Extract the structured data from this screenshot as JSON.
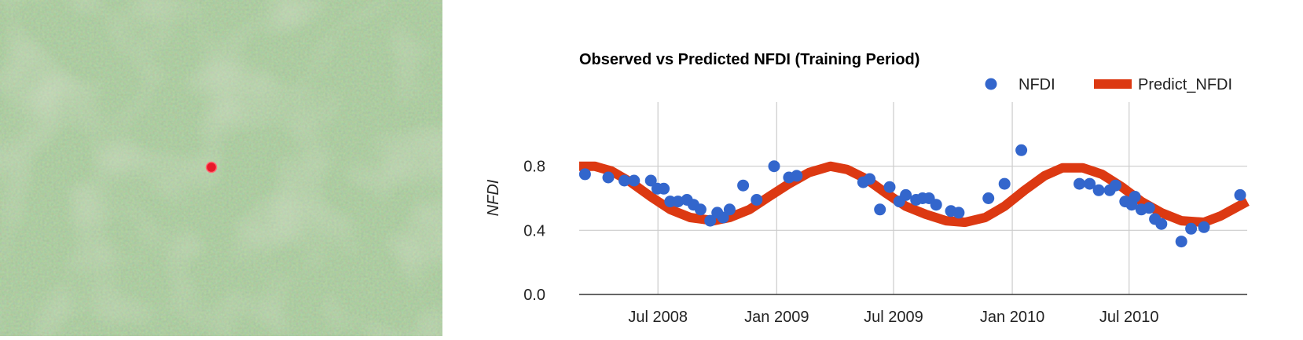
{
  "image_panel": {
    "marker_color": "#e8182a",
    "base_color": "#7aa66a"
  },
  "chart_data": {
    "type": "line",
    "title": "Observed vs Predicted NFDI (Training Period)",
    "xlabel": "",
    "ylabel": "NFDI",
    "x_ticks": [
      "Jul 2008",
      "Jan 2009",
      "Jul 2009",
      "Jan 2010",
      "Jul 2010"
    ],
    "y_ticks": [
      "0.0",
      "0.4",
      "0.8"
    ],
    "ylim": [
      0,
      1.2
    ],
    "xlim": [
      "2008-03-01",
      "2010-12-31"
    ],
    "grid": true,
    "legend": "top-right",
    "series": [
      {
        "name": "NFDI",
        "style": "scatter",
        "color": "#3366cc",
        "points": [
          [
            "2008-03-10",
            0.75
          ],
          [
            "2008-04-15",
            0.73
          ],
          [
            "2008-05-10",
            0.71
          ],
          [
            "2008-05-25",
            0.71
          ],
          [
            "2008-06-20",
            0.71
          ],
          [
            "2008-06-30",
            0.66
          ],
          [
            "2008-07-10",
            0.66
          ],
          [
            "2008-07-20",
            0.58
          ],
          [
            "2008-08-01",
            0.58
          ],
          [
            "2008-08-15",
            0.59
          ],
          [
            "2008-08-25",
            0.56
          ],
          [
            "2008-09-05",
            0.53
          ],
          [
            "2008-09-20",
            0.46
          ],
          [
            "2008-10-01",
            0.51
          ],
          [
            "2008-10-10",
            0.48
          ],
          [
            "2008-10-20",
            0.53
          ],
          [
            "2008-11-10",
            0.68
          ],
          [
            "2008-12-01",
            0.59
          ],
          [
            "2008-12-28",
            0.8
          ],
          [
            "2009-01-20",
            0.73
          ],
          [
            "2009-02-01",
            0.74
          ],
          [
            "2009-05-15",
            0.7
          ],
          [
            "2009-05-25",
            0.72
          ],
          [
            "2009-06-10",
            0.53
          ],
          [
            "2009-06-25",
            0.67
          ],
          [
            "2009-07-10",
            0.58
          ],
          [
            "2009-07-20",
            0.62
          ],
          [
            "2009-08-05",
            0.59
          ],
          [
            "2009-08-15",
            0.6
          ],
          [
            "2009-08-25",
            0.6
          ],
          [
            "2009-09-05",
            0.56
          ],
          [
            "2009-09-28",
            0.52
          ],
          [
            "2009-10-10",
            0.51
          ],
          [
            "2009-11-25",
            0.6
          ],
          [
            "2009-12-20",
            0.69
          ],
          [
            "2010-01-15",
            0.9
          ],
          [
            "2010-04-15",
            0.69
          ],
          [
            "2010-05-01",
            0.69
          ],
          [
            "2010-05-15",
            0.65
          ],
          [
            "2010-06-01",
            0.65
          ],
          [
            "2010-06-10",
            0.68
          ],
          [
            "2010-06-25",
            0.58
          ],
          [
            "2010-07-05",
            0.56
          ],
          [
            "2010-07-10",
            0.61
          ],
          [
            "2010-07-20",
            0.53
          ],
          [
            "2010-08-01",
            0.54
          ],
          [
            "2010-08-10",
            0.47
          ],
          [
            "2010-08-20",
            0.44
          ],
          [
            "2010-09-20",
            0.33
          ],
          [
            "2010-10-05",
            0.41
          ],
          [
            "2010-10-25",
            0.42
          ],
          [
            "2010-12-20",
            0.62
          ]
        ]
      },
      {
        "name": "Predict_NFDI",
        "style": "line",
        "color": "#dc3912",
        "points": [
          [
            "2008-03-01",
            0.8
          ],
          [
            "2008-03-25",
            0.8
          ],
          [
            "2008-04-20",
            0.77
          ],
          [
            "2008-05-20",
            0.7
          ],
          [
            "2008-06-20",
            0.61
          ],
          [
            "2008-07-20",
            0.53
          ],
          [
            "2008-08-20",
            0.48
          ],
          [
            "2008-09-25",
            0.46
          ],
          [
            "2008-10-20",
            0.48
          ],
          [
            "2008-11-20",
            0.53
          ],
          [
            "2008-12-20",
            0.61
          ],
          [
            "2009-01-20",
            0.69
          ],
          [
            "2009-02-20",
            0.76
          ],
          [
            "2009-03-25",
            0.8
          ],
          [
            "2009-04-20",
            0.78
          ],
          [
            "2009-05-20",
            0.72
          ],
          [
            "2009-06-20",
            0.63
          ],
          [
            "2009-07-20",
            0.55
          ],
          [
            "2009-08-20",
            0.5
          ],
          [
            "2009-09-20",
            0.46
          ],
          [
            "2009-10-20",
            0.45
          ],
          [
            "2009-11-20",
            0.48
          ],
          [
            "2009-12-20",
            0.55
          ],
          [
            "2010-01-20",
            0.65
          ],
          [
            "2010-02-20",
            0.74
          ],
          [
            "2010-03-20",
            0.79
          ],
          [
            "2010-04-20",
            0.79
          ],
          [
            "2010-05-20",
            0.75
          ],
          [
            "2010-06-20",
            0.67
          ],
          [
            "2010-07-20",
            0.58
          ],
          [
            "2010-08-20",
            0.51
          ],
          [
            "2010-09-20",
            0.46
          ],
          [
            "2010-10-25",
            0.45
          ],
          [
            "2010-11-20",
            0.49
          ],
          [
            "2010-12-31",
            0.58
          ]
        ]
      }
    ]
  }
}
